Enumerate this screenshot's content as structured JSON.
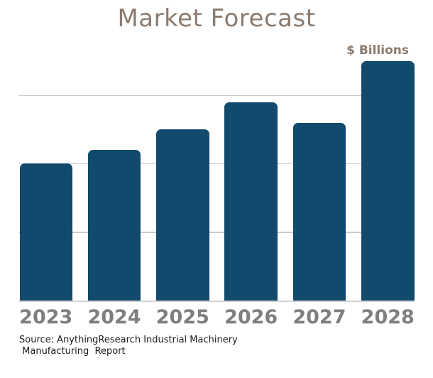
{
  "title": "Market Forecast",
  "axis": {
    "unit_label": "$ Billions",
    "x_labels": [
      "2023",
      "2024",
      "2025",
      "2026",
      "2027",
      "2028"
    ],
    "y_tick_labels_visible": false
  },
  "source": {
    "line1": "Source: AnythingResearch Industrial Machinery",
    "line2": " Manufacturing  Report"
  },
  "chart_data": {
    "type": "bar",
    "title": "Market Forecast",
    "categories": [
      "2023",
      "2024",
      "2025",
      "2026",
      "2027",
      "2028"
    ],
    "values": [
      2.0,
      2.2,
      2.5,
      2.9,
      2.6,
      3.5
    ],
    "xlabel": "",
    "ylabel": "$ Billions",
    "ylim": [
      0,
      3.5
    ],
    "gridlines_at": [
      1,
      2,
      3
    ],
    "grid": "horizontal",
    "legend": "none",
    "y_tick_labels_visible": false,
    "value_units": "gridline units estimated from bar heights; no numeric y-axis labels are shown in the chart"
  },
  "colors": {
    "bar": "#114A6D",
    "title_text": "#8B7B6F",
    "unit_label_text": "#8B7B6F",
    "x_label_text": "#7F7F7F",
    "gridline": "#CBCBCB",
    "baseline": "#D2D2D2",
    "source_text": "#1C1C1C",
    "background": "#FFFFFF"
  }
}
